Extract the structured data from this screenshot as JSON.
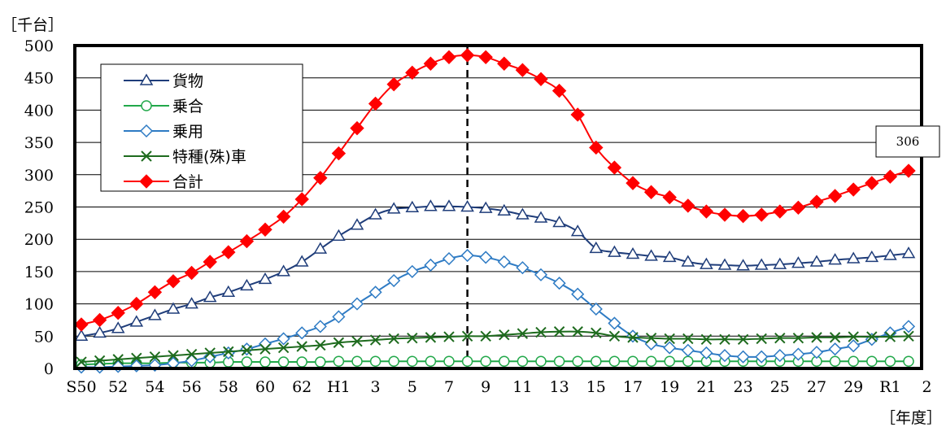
{
  "chart_data": {
    "type": "line",
    "unit_y": "［千台］",
    "unit_x": "［年度］",
    "ylim": [
      0,
      500
    ],
    "y_ticks": [
      "0",
      "50",
      "100",
      "150",
      "200",
      "250",
      "300",
      "350",
      "400",
      "450",
      "500"
    ],
    "x_tick_labels": [
      "S50",
      "52",
      "54",
      "56",
      "58",
      "60",
      "62",
      "H1",
      "3",
      "5",
      "7",
      "9",
      "11",
      "13",
      "15",
      "17",
      "19",
      "21",
      "23",
      "25",
      "27",
      "29",
      "R1",
      "2"
    ],
    "categories": [
      "S50",
      "S51",
      "S52",
      "S53",
      "S54",
      "S55",
      "S56",
      "S57",
      "S58",
      "S59",
      "S60",
      "S61",
      "S62",
      "S63",
      "H1",
      "H2",
      "H3",
      "H4",
      "H5",
      "H6",
      "H7",
      "H8",
      "H9",
      "H10",
      "H11",
      "H12",
      "H13",
      "H14",
      "H15",
      "H16",
      "H17",
      "H18",
      "H19",
      "H20",
      "H21",
      "H22",
      "H23",
      "H24",
      "H25",
      "H26",
      "H27",
      "H28",
      "H29",
      "H30",
      "R1",
      "R2"
    ],
    "grid": true,
    "legend_position": "top-left",
    "reference_line_category": "H8",
    "series": [
      {
        "name": "貨物",
        "color": "#1f3d7a",
        "marker": "triangle",
        "values": [
          50,
          55,
          62,
          72,
          82,
          92,
          100,
          110,
          118,
          128,
          138,
          150,
          165,
          185,
          205,
          222,
          238,
          247,
          249,
          251,
          251,
          250,
          248,
          244,
          238,
          233,
          226,
          212,
          186,
          180,
          177,
          174,
          172,
          165,
          161,
          160,
          159,
          160,
          161,
          163,
          165,
          168,
          170,
          172,
          175,
          178
        ]
      },
      {
        "name": "乗合",
        "color": "#22a84a",
        "marker": "circle",
        "values": [
          6,
          7,
          8,
          8,
          8,
          9,
          9,
          9,
          10,
          10,
          10,
          10,
          10,
          10,
          11,
          11,
          11,
          11,
          11,
          11,
          11,
          11,
          11,
          11,
          11,
          11,
          11,
          11,
          11,
          11,
          11,
          11,
          11,
          11,
          11,
          11,
          11,
          11,
          11,
          11,
          11,
          11,
          11,
          11,
          11,
          11
        ]
      },
      {
        "name": "乗用",
        "color": "#2e7bc4",
        "marker": "diamond",
        "values": [
          2,
          2,
          3,
          4,
          5,
          8,
          12,
          18,
          24,
          30,
          38,
          46,
          55,
          65,
          80,
          100,
          118,
          136,
          150,
          160,
          170,
          175,
          172,
          165,
          156,
          145,
          132,
          115,
          92,
          70,
          50,
          38,
          32,
          28,
          24,
          20,
          18,
          18,
          20,
          22,
          25,
          30,
          35,
          45,
          55,
          65
        ]
      },
      {
        "name": "特種(殊)車",
        "color": "#1e6b1e",
        "marker": "x",
        "values": [
          10,
          12,
          14,
          16,
          18,
          20,
          22,
          24,
          26,
          28,
          30,
          32,
          34,
          36,
          40,
          42,
          44,
          46,
          47,
          48,
          49,
          50,
          50,
          52,
          54,
          56,
          57,
          57,
          55,
          50,
          48,
          47,
          46,
          46,
          45,
          45,
          45,
          46,
          47,
          47,
          48,
          48,
          49,
          49,
          49,
          50
        ]
      },
      {
        "name": "合計",
        "color": "#ff0000",
        "marker": "diamond-filled",
        "values": [
          68,
          75,
          86,
          100,
          118,
          135,
          148,
          165,
          180,
          197,
          215,
          235,
          262,
          295,
          333,
          372,
          410,
          440,
          458,
          472,
          482,
          485,
          482,
          472,
          462,
          448,
          430,
          393,
          342,
          311,
          287,
          273,
          265,
          252,
          243,
          238,
          236,
          238,
          243,
          249,
          258,
          267,
          277,
          287,
          297,
          306
        ]
      }
    ],
    "annotations": [
      {
        "text": "306",
        "category": "R2",
        "series": "合計"
      }
    ]
  }
}
